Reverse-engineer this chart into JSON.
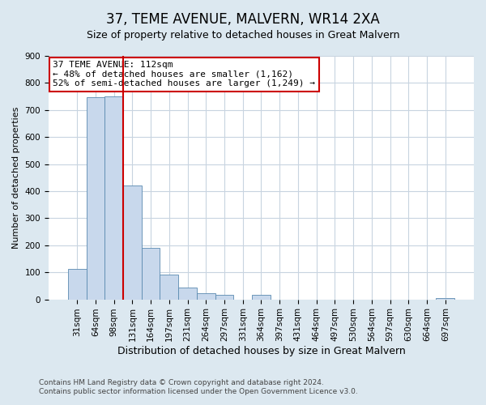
{
  "title": "37, TEME AVENUE, MALVERN, WR14 2XA",
  "subtitle": "Size of property relative to detached houses in Great Malvern",
  "xlabel": "Distribution of detached houses by size in Great Malvern",
  "ylabel": "Number of detached properties",
  "bar_labels": [
    "31sqm",
    "64sqm",
    "98sqm",
    "131sqm",
    "164sqm",
    "197sqm",
    "231sqm",
    "264sqm",
    "297sqm",
    "331sqm",
    "364sqm",
    "397sqm",
    "431sqm",
    "464sqm",
    "497sqm",
    "530sqm",
    "564sqm",
    "597sqm",
    "630sqm",
    "664sqm",
    "697sqm"
  ],
  "bar_values": [
    112,
    748,
    750,
    420,
    190,
    93,
    45,
    22,
    18,
    0,
    16,
    0,
    0,
    0,
    0,
    0,
    0,
    0,
    0,
    0,
    5
  ],
  "bar_color": "#c8d8ec",
  "bar_edge_color": "#5a8ab0",
  "property_line_x": 2.5,
  "property_line_color": "#cc0000",
  "annotation_text": "37 TEME AVENUE: 112sqm\n← 48% of detached houses are smaller (1,162)\n52% of semi-detached houses are larger (1,249) →",
  "annotation_box_color": "#ffffff",
  "annotation_box_edge_color": "#cc0000",
  "ylim": [
    0,
    900
  ],
  "yticks": [
    0,
    100,
    200,
    300,
    400,
    500,
    600,
    700,
    800,
    900
  ],
  "fig_bg_color": "#dce8f0",
  "plot_bg_color": "#ffffff",
  "grid_color": "#c8d4e0",
  "footer_line1": "Contains HM Land Registry data © Crown copyright and database right 2024.",
  "footer_line2": "Contains public sector information licensed under the Open Government Licence v3.0.",
  "title_fontsize": 12,
  "subtitle_fontsize": 9,
  "xlabel_fontsize": 9,
  "ylabel_fontsize": 8,
  "tick_fontsize": 7.5,
  "annotation_fontsize": 8
}
